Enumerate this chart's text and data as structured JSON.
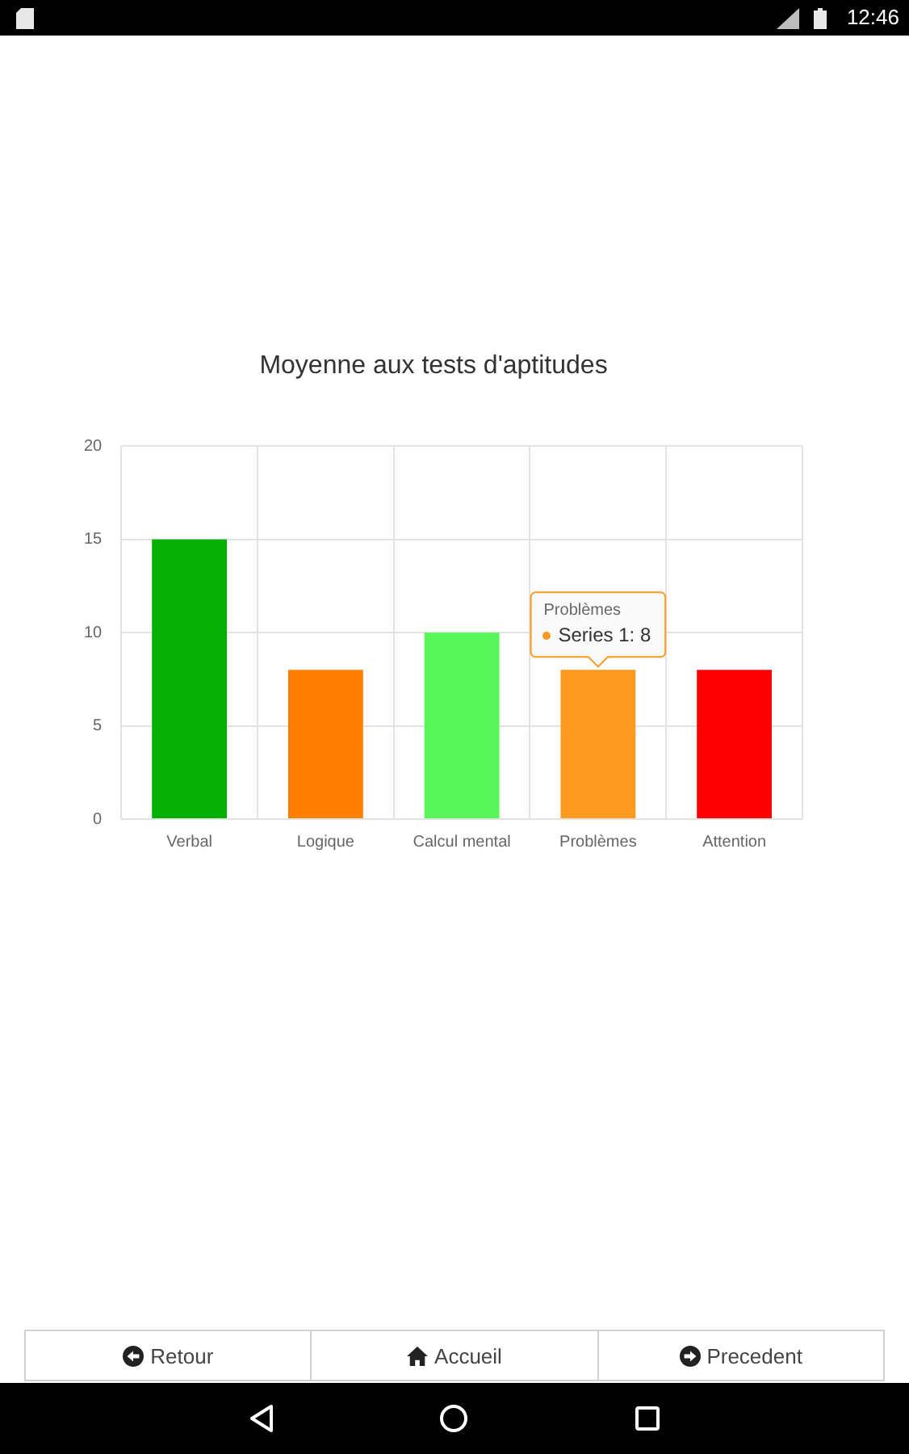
{
  "chart_data": {
    "type": "bar",
    "title": "Moyenne aux tests d'aptitudes",
    "categories": [
      "Verbal",
      "Logique",
      "Calcul mental",
      "Problèmes",
      "Attention"
    ],
    "series": [
      {
        "values": [
          15,
          8,
          10,
          8,
          8
        ],
        "colors": [
          "#04b004",
          "#ff8000",
          "#58f658",
          "#fe9a20",
          "#ff0000"
        ]
      }
    ],
    "ylim": [
      0,
      20
    ],
    "yticks": [
      0,
      5,
      10,
      15,
      20
    ],
    "grid": true,
    "legend": false,
    "annotations": [
      {
        "text": "Series 1: 8",
        "x": "Problèmes",
        "y": 8
      },
      "Retour",
      "Accueil",
      "Precedent",
      "12:46"
    ]
  }
}
